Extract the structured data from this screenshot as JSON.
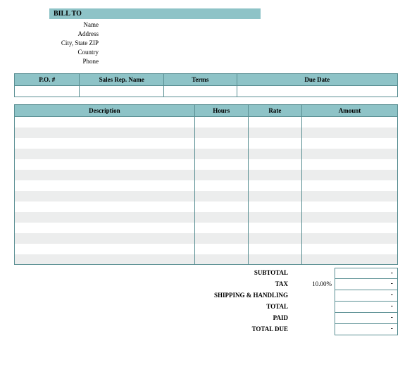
{
  "colors": {
    "header_bg": "#8ec3c7",
    "border": "#5a8f93",
    "alt_row": "#eceded",
    "page_bg": "#ffffff"
  },
  "bill_to": {
    "title": "BILL TO",
    "fields": [
      "Name",
      "Address",
      "City, State ZIP",
      "Country",
      "Phone"
    ]
  },
  "po_table": {
    "headers": [
      "P.O. #",
      "Sales Rep. Name",
      "Terms",
      "Due Date"
    ],
    "col_widths_pct": [
      17,
      22,
      19,
      42
    ]
  },
  "lines_table": {
    "headers": [
      "Description",
      "Hours",
      "Rate",
      "Amount"
    ],
    "col_widths_pct": [
      47,
      14,
      14,
      25
    ],
    "row_count": 14
  },
  "totals": {
    "rows": [
      {
        "label": "SUBTOTAL",
        "extra": "",
        "value": "-"
      },
      {
        "label": "TAX",
        "extra": "10.00%",
        "value": "-"
      },
      {
        "label": "SHIPPING & HANDLING",
        "extra": "",
        "value": "-"
      },
      {
        "label": "TOTAL",
        "extra": "",
        "value": "-"
      },
      {
        "label": "PAID",
        "extra": "",
        "value": "-"
      },
      {
        "label": "TOTAL DUE",
        "extra": "",
        "value": "-"
      }
    ]
  }
}
